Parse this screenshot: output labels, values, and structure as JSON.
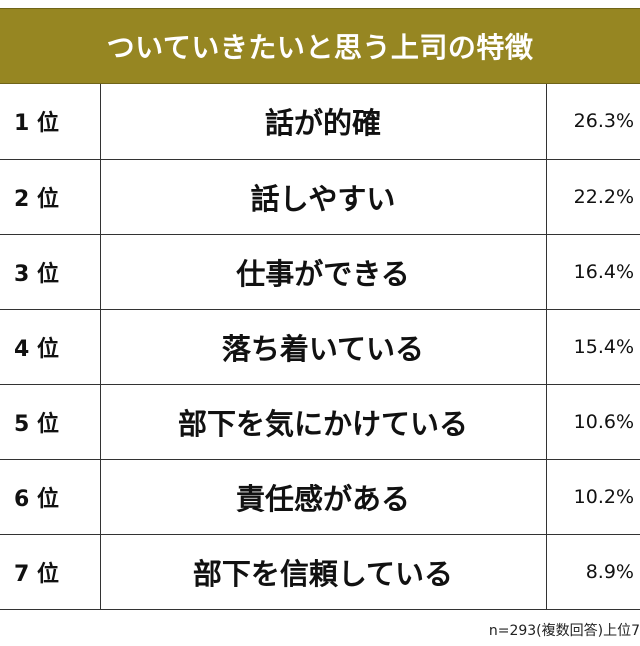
{
  "chart_data": {
    "type": "table",
    "title": "ついていきたいと思う上司の特徴",
    "categories": [
      "話が的確",
      "話しやすい",
      "仕事ができる",
      "落ち着いている",
      "部下を気にかけている",
      "責任感がある",
      "部下を信頼している"
    ],
    "values": [
      26.3,
      22.2,
      16.4,
      15.4,
      10.6,
      10.2,
      8.9
    ],
    "ranks": [
      "1 位",
      "2 位",
      "3 位",
      "4 位",
      "5 位",
      "6 位",
      "7 位"
    ],
    "value_labels": [
      "26.3%",
      "22.2%",
      "16.4%",
      "15.4%",
      "10.6%",
      "10.2%",
      "8.9%"
    ],
    "note": "n=293(複数回答)上位7"
  },
  "colors": {
    "header_background": "#968622",
    "header_text": "#ffffff",
    "text": "#111111",
    "border": "#333333"
  }
}
